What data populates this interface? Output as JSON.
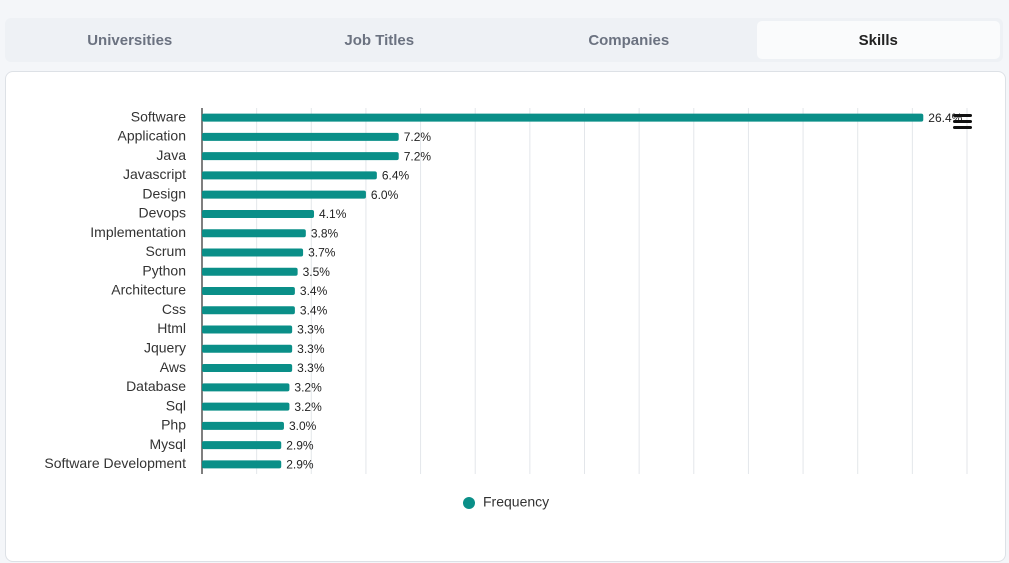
{
  "tabs": [
    "Universities",
    "Job Titles",
    "Companies",
    "Skills"
  ],
  "active_tab": 3,
  "chart_data": {
    "type": "bar",
    "orientation": "horizontal",
    "categories": [
      "Software",
      "Application",
      "Java",
      "Javascript",
      "Design",
      "Devops",
      "Implementation",
      "Scrum",
      "Python",
      "Architecture",
      "Css",
      "Html",
      "Jquery",
      "Aws",
      "Database",
      "Sql",
      "Php",
      "Mysql",
      "Software Development"
    ],
    "series": [
      {
        "name": "Frequency",
        "color": "#0a8f88",
        "values": [
          26.4,
          7.2,
          7.2,
          6.4,
          6.0,
          4.1,
          3.8,
          3.7,
          3.5,
          3.4,
          3.4,
          3.3,
          3.3,
          3.3,
          3.2,
          3.2,
          3.0,
          2.9,
          2.9
        ],
        "value_labels": [
          "26.4%",
          "7.2%",
          "7.2%",
          "6.4%",
          "6.0%",
          "4.1%",
          "3.8%",
          "3.7%",
          "3.5%",
          "3.4%",
          "3.4%",
          "3.3%",
          "3.3%",
          "3.3%",
          "3.2%",
          "3.2%",
          "3.0%",
          "2.9%",
          "2.9%"
        ]
      }
    ],
    "xlim": [
      0,
      28
    ],
    "xticks": [
      0,
      2,
      4,
      6,
      8,
      10,
      12,
      14,
      16,
      18,
      20,
      22,
      24,
      26,
      28
    ],
    "grid": true,
    "legend": "bottom"
  }
}
